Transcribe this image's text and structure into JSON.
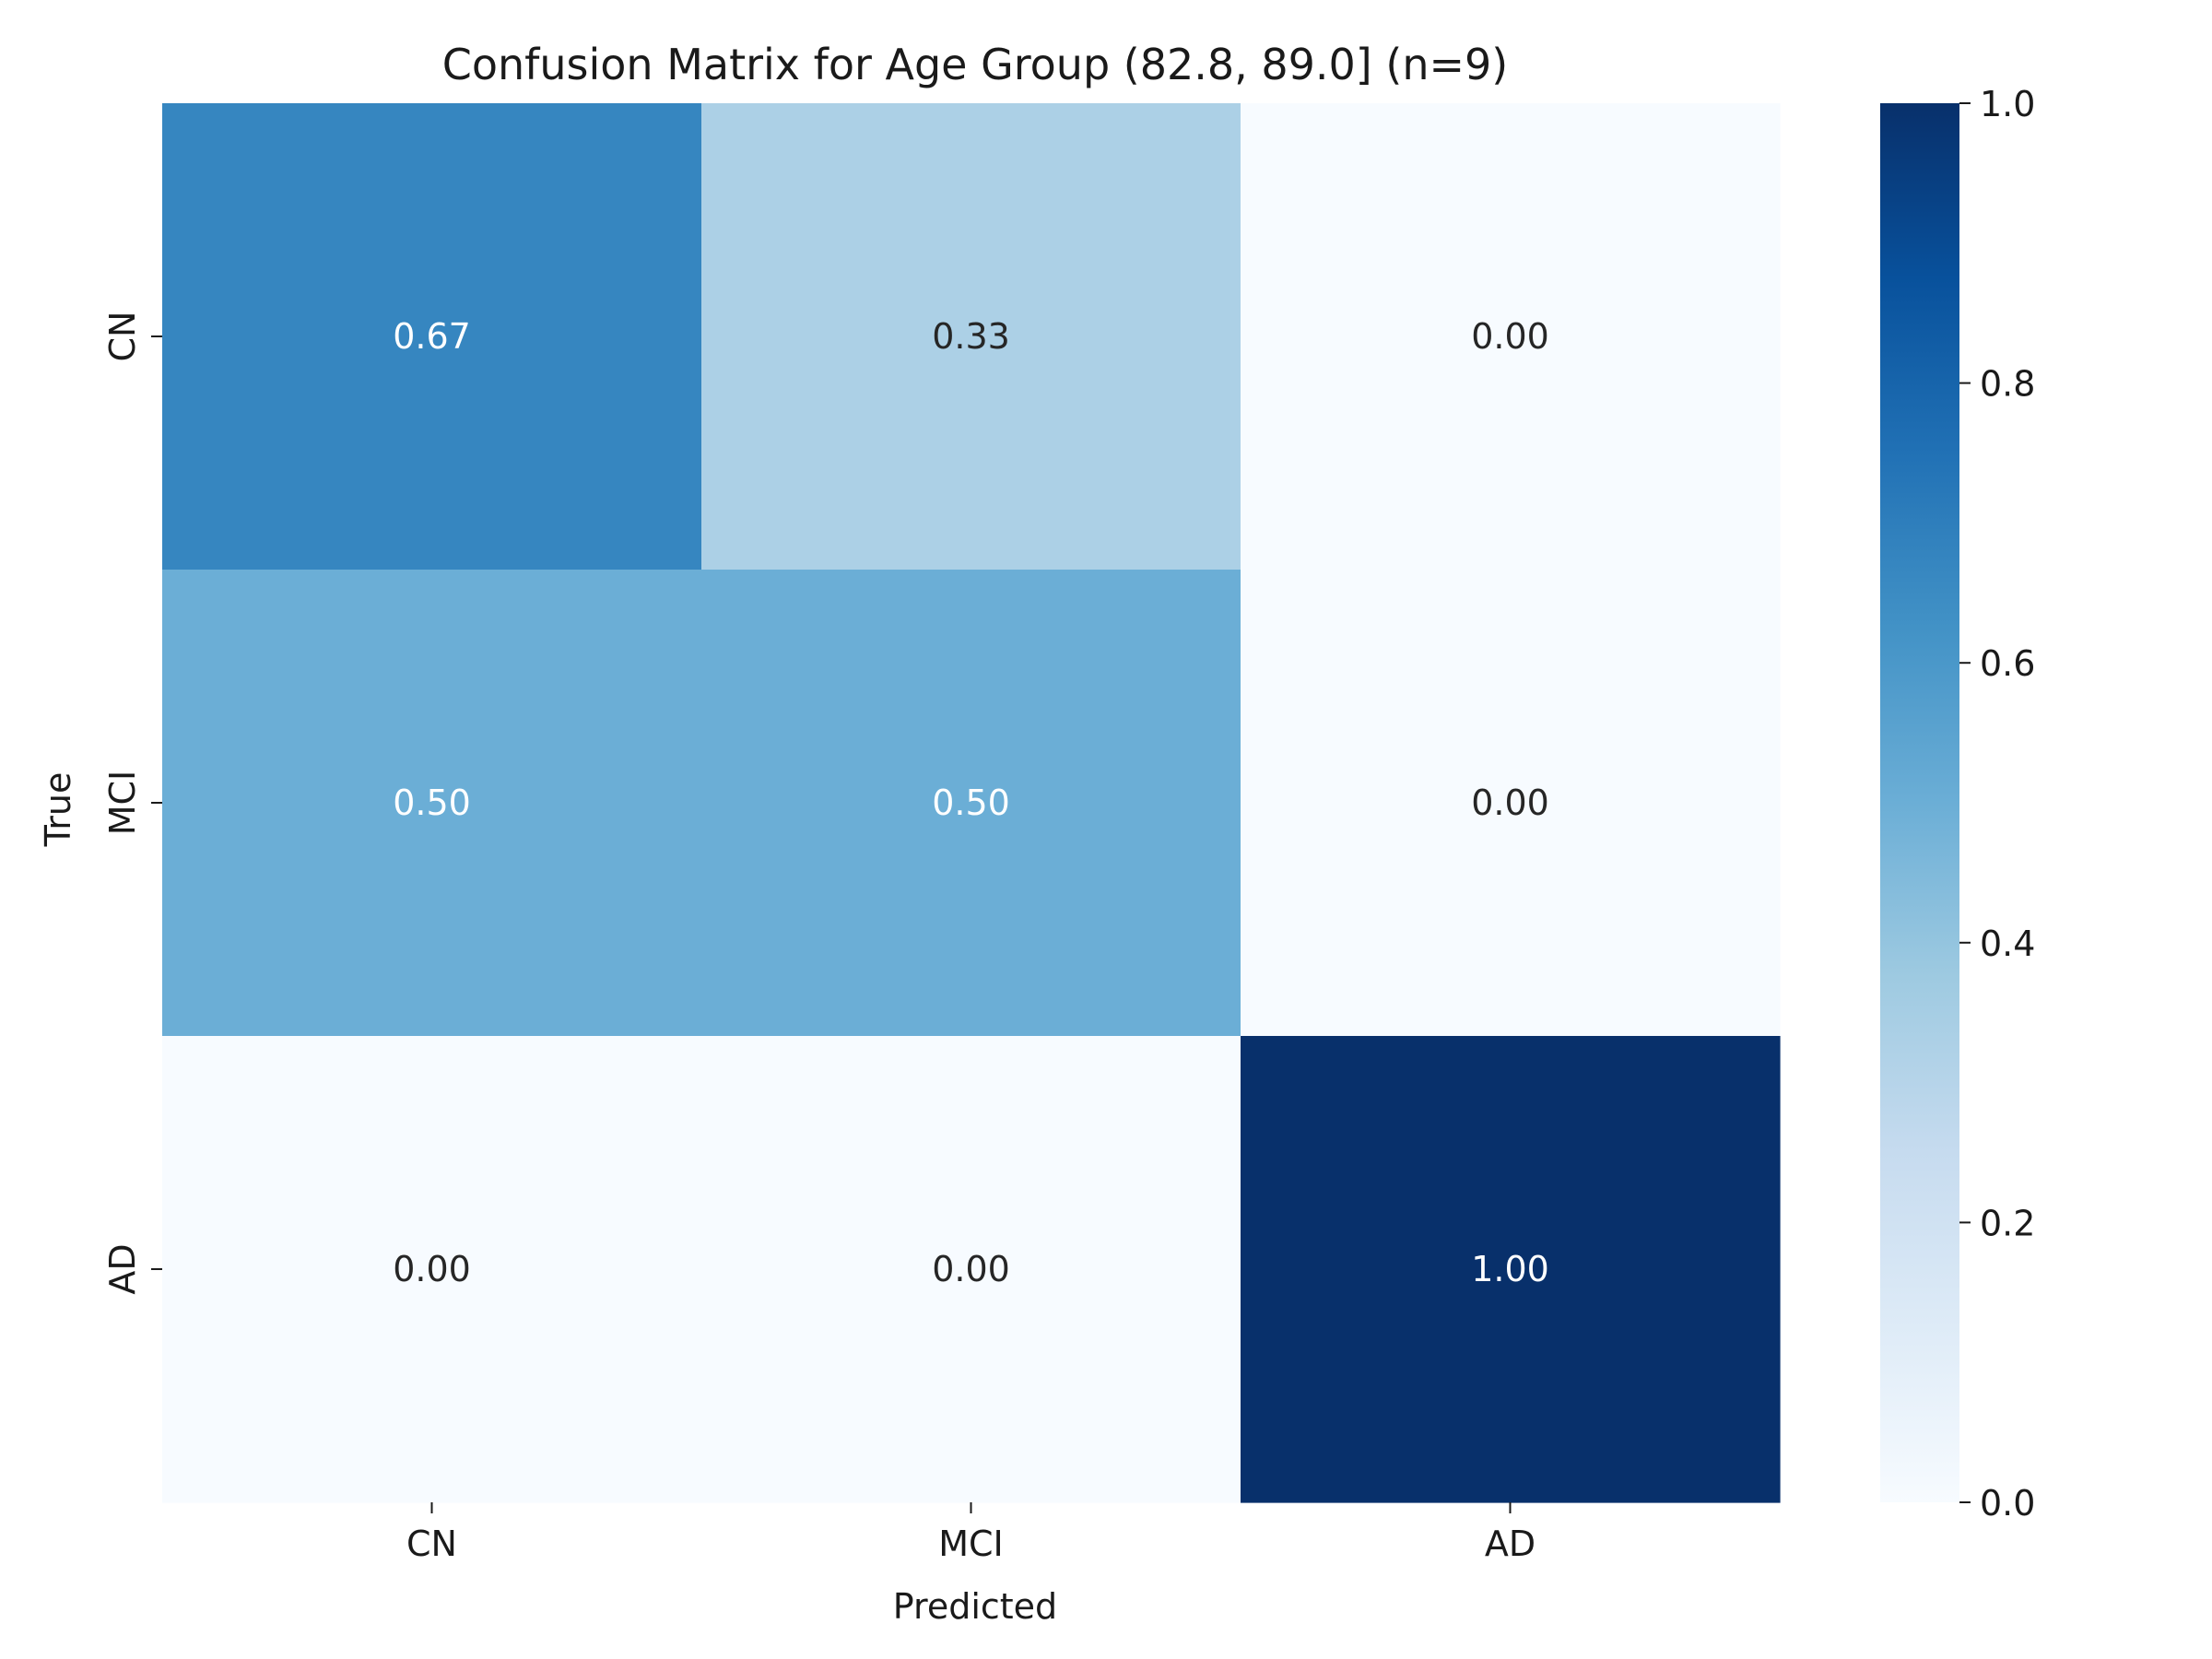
{
  "chart_data": {
    "type": "heatmap",
    "title": "Confusion Matrix for Age Group (82.8, 89.0] (n=9)",
    "xlabel": "Predicted",
    "ylabel": "True",
    "x_categories": [
      "CN",
      "MCI",
      "AD"
    ],
    "y_categories": [
      "CN",
      "MCI",
      "AD"
    ],
    "values": [
      [
        0.67,
        0.33,
        0.0
      ],
      [
        0.5,
        0.5,
        0.0
      ],
      [
        0.0,
        0.0,
        1.0
      ]
    ],
    "cell_labels": [
      [
        "0.67",
        "0.33",
        "0.00"
      ],
      [
        "0.50",
        "0.50",
        "0.00"
      ],
      [
        "0.00",
        "0.00",
        "1.00"
      ]
    ],
    "colormap": "Blues",
    "colorbar": {
      "range": [
        0.0,
        1.0
      ],
      "ticks": [
        0.0,
        0.2,
        0.4,
        0.6,
        0.8,
        1.0
      ],
      "tick_labels": [
        "0.0",
        "0.2",
        "0.4",
        "0.6",
        "0.8",
        "1.0"
      ]
    },
    "colors": {
      "low": "#f7fbff",
      "high": "#08306b",
      "text_dark": "#262626",
      "text_light": "#ffffff"
    }
  }
}
